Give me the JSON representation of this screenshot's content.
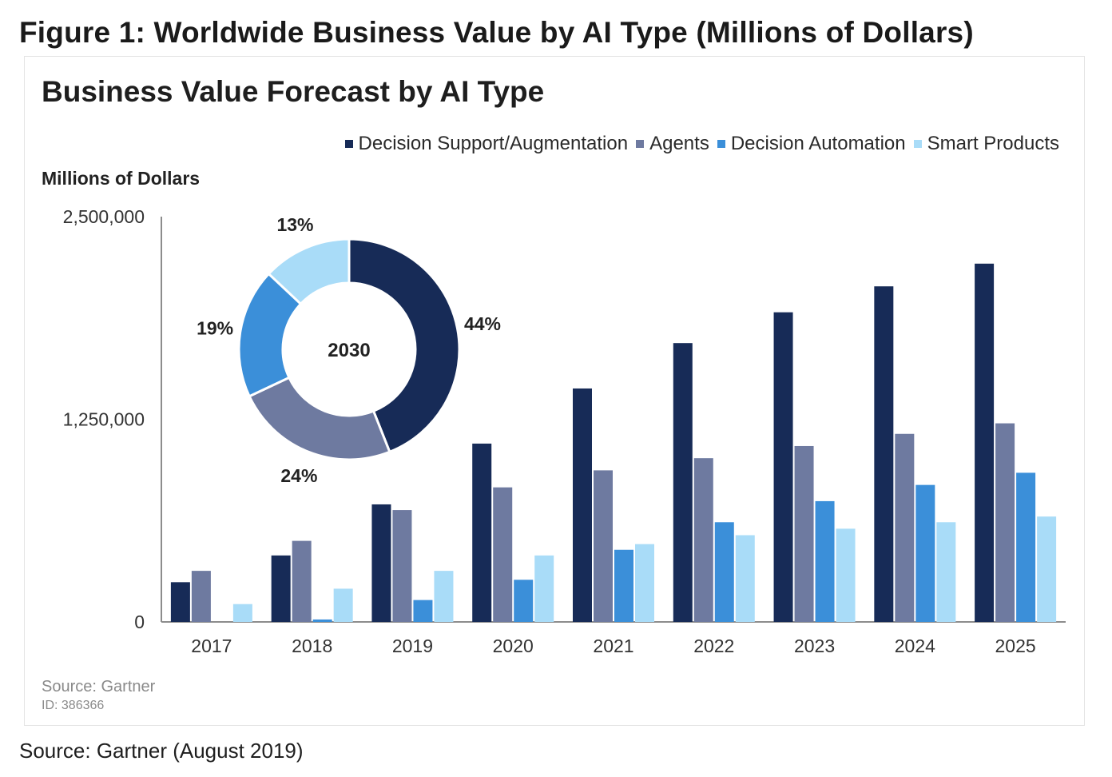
{
  "figure_title": "Figure 1: Worldwide Business Value by AI Type (Millions of Dollars)",
  "source_outer": "Source: Gartner (August 2019)",
  "source_inner": "Source: Gartner",
  "id_text": "ID: 386366",
  "chart_data": [
    {
      "type": "bar",
      "title": "Business Value Forecast by AI Type",
      "ylabel": "Millions of Dollars",
      "xlabel": "",
      "ylim": [
        0,
        2500000
      ],
      "yticks": [
        0,
        1250000,
        2500000
      ],
      "ytick_labels": [
        "0",
        "1,250,000",
        "2,500,000"
      ],
      "grid": false,
      "legend_position": "top-right",
      "categories": [
        "2017",
        "2018",
        "2019",
        "2020",
        "2021",
        "2022",
        "2023",
        "2024",
        "2025"
      ],
      "series": [
        {
          "name": "Decision Support/Augmentation",
          "color": "#172b57",
          "values": [
            245000,
            410000,
            725000,
            1100000,
            1440000,
            1720000,
            1910000,
            2070000,
            2210000
          ]
        },
        {
          "name": "Agents",
          "color": "#6e7aa0",
          "values": [
            315000,
            500000,
            690000,
            830000,
            935000,
            1010000,
            1085000,
            1160000,
            1225000
          ]
        },
        {
          "name": "Decision Automation",
          "color": "#3b8fd9",
          "values": [
            0,
            15000,
            135000,
            260000,
            445000,
            615000,
            745000,
            845000,
            920000
          ]
        },
        {
          "name": "Smart Products",
          "color": "#a9dcf8",
          "values": [
            110000,
            205000,
            315000,
            410000,
            480000,
            535000,
            575000,
            615000,
            650000
          ]
        }
      ]
    },
    {
      "type": "pie",
      "center_label": "2030",
      "slices": [
        {
          "series": "Decision Support/Augmentation",
          "value": 44,
          "label": "44%",
          "color": "#172b57"
        },
        {
          "series": "Agents",
          "value": 24,
          "label": "24%",
          "color": "#6e7aa0"
        },
        {
          "series": "Decision Automation",
          "value": 19,
          "label": "19%",
          "color": "#3b8fd9"
        },
        {
          "series": "Smart Products",
          "value": 13,
          "label": "13%",
          "color": "#a9dcf8"
        }
      ]
    }
  ]
}
